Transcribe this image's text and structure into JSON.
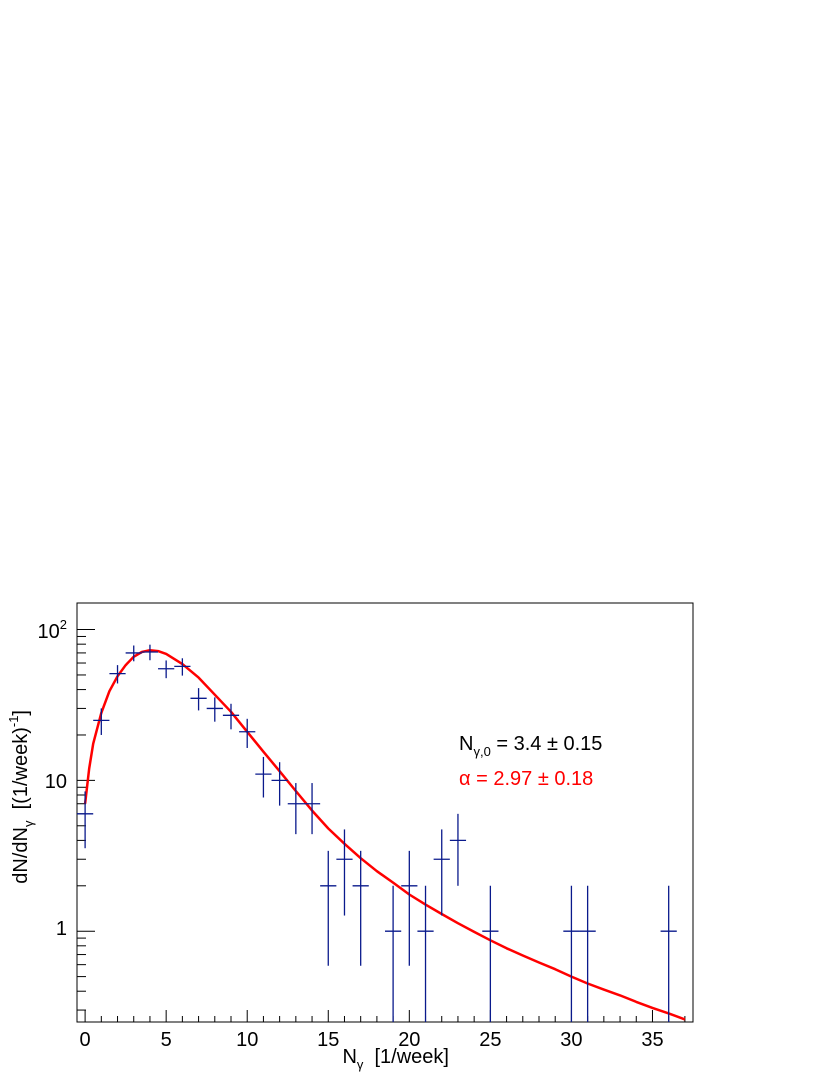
{
  "chart_data": {
    "type": "scatter",
    "xlabel": {
      "base": "N",
      "sub": "γ",
      "rest": "  [1/week]"
    },
    "ylabel": {
      "prefix": "dN/dN",
      "sub": "γ",
      "mid": "  [(1/week)",
      "sup": "-1",
      "end": "]"
    },
    "xlim": [
      -0.5,
      37.5
    ],
    "ylim": [
      0.25,
      150
    ],
    "yscale": "log",
    "x_ticks": [
      0,
      5,
      10,
      15,
      20,
      25,
      30,
      35
    ],
    "x_tick_labels": [
      "0",
      "5",
      "10",
      "15",
      "20",
      "25",
      "30",
      "35"
    ],
    "y_tick_labels": {
      "hundred_base": "10",
      "hundred_sup": "2",
      "ten": "10",
      "one": "1"
    },
    "grid": false,
    "series": [
      {
        "kind": "data",
        "color": "#0a1a8c",
        "points": [
          {
            "x": 0,
            "y": 6,
            "yerr": 2.45
          },
          {
            "x": 1,
            "y": 25,
            "yerr": 5
          },
          {
            "x": 2,
            "y": 51,
            "yerr": 7.1
          },
          {
            "x": 3,
            "y": 70,
            "yerr": 8.4
          },
          {
            "x": 4,
            "y": 71,
            "yerr": 8.4
          },
          {
            "x": 5,
            "y": 55,
            "yerr": 7.4
          },
          {
            "x": 6,
            "y": 57,
            "yerr": 7.5
          },
          {
            "x": 7,
            "y": 35,
            "yerr": 5.9
          },
          {
            "x": 8,
            "y": 30,
            "yerr": 5.5
          },
          {
            "x": 9,
            "y": 27,
            "yerr": 5.2
          },
          {
            "x": 10,
            "y": 21,
            "yerr": 4.6
          },
          {
            "x": 11,
            "y": 11,
            "yerr": 3.3
          },
          {
            "x": 12,
            "y": 10,
            "yerr": 3.2
          },
          {
            "x": 13,
            "y": 7,
            "yerr": 2.6
          },
          {
            "x": 14,
            "y": 7,
            "yerr": 2.6
          },
          {
            "x": 15,
            "y": 2,
            "yerr": 1.41
          },
          {
            "x": 16,
            "y": 3,
            "yerr": 1.73
          },
          {
            "x": 17,
            "y": 2,
            "yerr": 1.41
          },
          {
            "x": 19,
            "y": 1,
            "yerr": 1
          },
          {
            "x": 20,
            "y": 2,
            "yerr": 1.41
          },
          {
            "x": 21,
            "y": 1,
            "yerr": 1
          },
          {
            "x": 22,
            "y": 3,
            "yerr": 1.73
          },
          {
            "x": 23,
            "y": 4,
            "yerr": 2
          },
          {
            "x": 25,
            "y": 1,
            "yerr": 1
          },
          {
            "x": 30,
            "y": 1,
            "yerr": 1
          },
          {
            "x": 31,
            "y": 1,
            "yerr": 1
          },
          {
            "x": 36,
            "y": 1,
            "yerr": 1
          }
        ]
      },
      {
        "kind": "fit",
        "color": "#ff0000",
        "points": [
          [
            0,
            7
          ],
          [
            0.25,
            12
          ],
          [
            0.5,
            17.5
          ],
          [
            1,
            28
          ],
          [
            1.5,
            39
          ],
          [
            2,
            49
          ],
          [
            2.5,
            58
          ],
          [
            3,
            66
          ],
          [
            3.5,
            71
          ],
          [
            4,
            73
          ],
          [
            4.5,
            72
          ],
          [
            5,
            69
          ],
          [
            6,
            59
          ],
          [
            7,
            48
          ],
          [
            8,
            37
          ],
          [
            9,
            28.5
          ],
          [
            10,
            21
          ],
          [
            11,
            15.5
          ],
          [
            12,
            11.5
          ],
          [
            13,
            8.5
          ],
          [
            14,
            6.3
          ],
          [
            15,
            4.8
          ],
          [
            16,
            3.8
          ],
          [
            17,
            3.05
          ],
          [
            18,
            2.5
          ],
          [
            19,
            2.1
          ],
          [
            20,
            1.75
          ],
          [
            21,
            1.5
          ],
          [
            22,
            1.3
          ],
          [
            23,
            1.13
          ],
          [
            24,
            0.99
          ],
          [
            25,
            0.87
          ],
          [
            26,
            0.77
          ],
          [
            27,
            0.69
          ],
          [
            28,
            0.62
          ],
          [
            29,
            0.56
          ],
          [
            30,
            0.5
          ],
          [
            31,
            0.45
          ],
          [
            32,
            0.41
          ],
          [
            33,
            0.375
          ],
          [
            34,
            0.34
          ],
          [
            35,
            0.31
          ],
          [
            36,
            0.285
          ],
          [
            37,
            0.26
          ]
        ]
      }
    ],
    "annotations": {
      "ngamma": {
        "base": "N",
        "sub": "γ,0",
        "text": " = 3.4 ± 0.15",
        "color": "#000000"
      },
      "alpha": {
        "text": "α = 2.97 ± 0.18",
        "color": "#ff0000"
      }
    }
  }
}
